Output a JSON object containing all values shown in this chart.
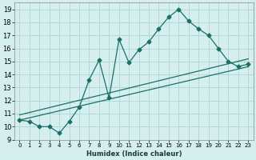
{
  "xlabel": "Humidex (Indice chaleur)",
  "background_color": "#d5eeee",
  "grid_color": "#aed4d4",
  "line_color": "#1a7068",
  "xlim": [
    -0.5,
    23.5
  ],
  "ylim": [
    9,
    19.5
  ],
  "yticks": [
    9,
    10,
    11,
    12,
    13,
    14,
    15,
    16,
    17,
    18,
    19
  ],
  "xticks": [
    0,
    1,
    2,
    3,
    4,
    5,
    6,
    7,
    8,
    9,
    10,
    11,
    12,
    13,
    14,
    15,
    16,
    17,
    18,
    19,
    20,
    21,
    22,
    23
  ],
  "line1_x": [
    0,
    1,
    2,
    3,
    4,
    5,
    6,
    7,
    8,
    9,
    10,
    11,
    12,
    13,
    14,
    15,
    16,
    17,
    18,
    19,
    20,
    21,
    22,
    23
  ],
  "line1_y": [
    10.5,
    10.4,
    10.0,
    10.0,
    9.5,
    10.4,
    11.5,
    13.6,
    15.1,
    12.2,
    16.7,
    14.9,
    15.9,
    16.5,
    17.5,
    18.4,
    19.0,
    18.1,
    17.5,
    17.0,
    16.0,
    15.0,
    14.6,
    14.8
  ],
  "line2_x": [
    0,
    23
  ],
  "line2_y": [
    10.5,
    14.6
  ],
  "line3_x": [
    0,
    23
  ],
  "line3_y": [
    10.9,
    15.2
  ],
  "xlabel_fontsize": 6,
  "xlabel_fontweight": "bold",
  "tick_fontsize": 5,
  "ytick_fontsize": 6
}
